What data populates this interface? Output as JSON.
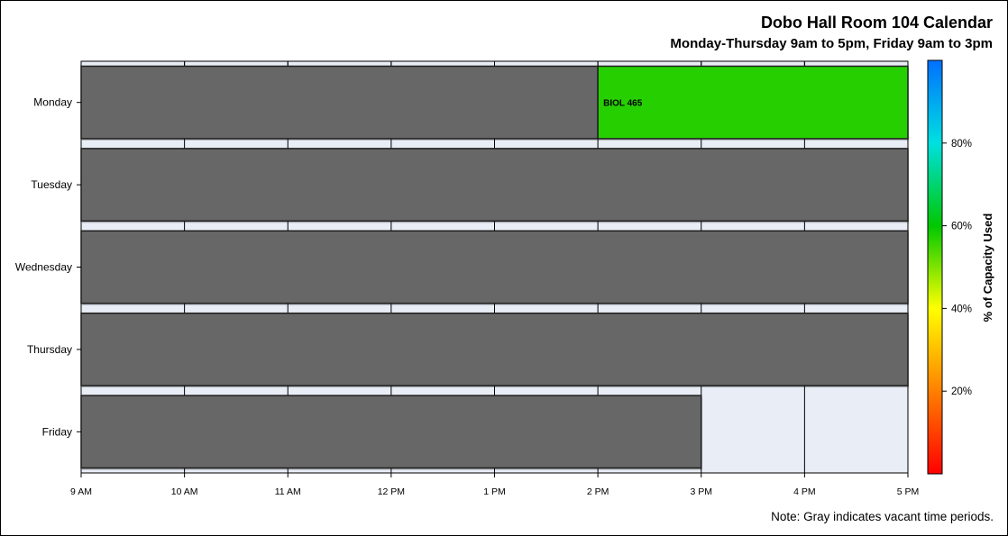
{
  "chart_data": {
    "type": "timeline",
    "title": "Dobo Hall Room 104 Calendar",
    "subtitle": "Monday-Thursday 9am to 5pm, Friday 9am to 3pm",
    "note": "Note: Gray indicates vacant time periods.",
    "x_ticks": [
      {
        "hour": 9,
        "label": "9 AM"
      },
      {
        "hour": 10,
        "label": "10 AM"
      },
      {
        "hour": 11,
        "label": "11 AM"
      },
      {
        "hour": 12,
        "label": "12 PM"
      },
      {
        "hour": 13,
        "label": "1 PM"
      },
      {
        "hour": 14,
        "label": "2 PM"
      },
      {
        "hour": 15,
        "label": "3 PM"
      },
      {
        "hour": 16,
        "label": "4 PM"
      },
      {
        "hour": 17,
        "label": "5 PM"
      }
    ],
    "xlim": [
      9,
      17
    ],
    "days": [
      "Monday",
      "Tuesday",
      "Wednesday",
      "Thursday",
      "Friday"
    ],
    "segments": [
      {
        "day": "Monday",
        "start": 9,
        "end": 14,
        "status": "vacant",
        "label": ""
      },
      {
        "day": "Monday",
        "start": 14,
        "end": 17,
        "status": "scheduled",
        "label": "BIOL 465",
        "capacity_pct": 57
      },
      {
        "day": "Tuesday",
        "start": 9,
        "end": 17,
        "status": "vacant",
        "label": ""
      },
      {
        "day": "Wednesday",
        "start": 9,
        "end": 17,
        "status": "vacant",
        "label": ""
      },
      {
        "day": "Thursday",
        "start": 9,
        "end": 17,
        "status": "vacant",
        "label": ""
      },
      {
        "day": "Friday",
        "start": 9,
        "end": 15,
        "status": "vacant",
        "label": ""
      }
    ],
    "colorbar": {
      "label": "% of Capacity Used",
      "ticks": [
        {
          "value": 20,
          "label": "20%"
        },
        {
          "value": 40,
          "label": "40%"
        },
        {
          "value": 60,
          "label": "60%"
        },
        {
          "value": 80,
          "label": "80%"
        }
      ],
      "range": [
        0,
        100
      ],
      "colors": [
        "#ff0000",
        "#ff8000",
        "#ffff00",
        "#00c800",
        "#00e0e0",
        "#0070ff"
      ]
    },
    "vacant_color": "#676767",
    "background_color": "#e9edf6",
    "grid": true
  }
}
